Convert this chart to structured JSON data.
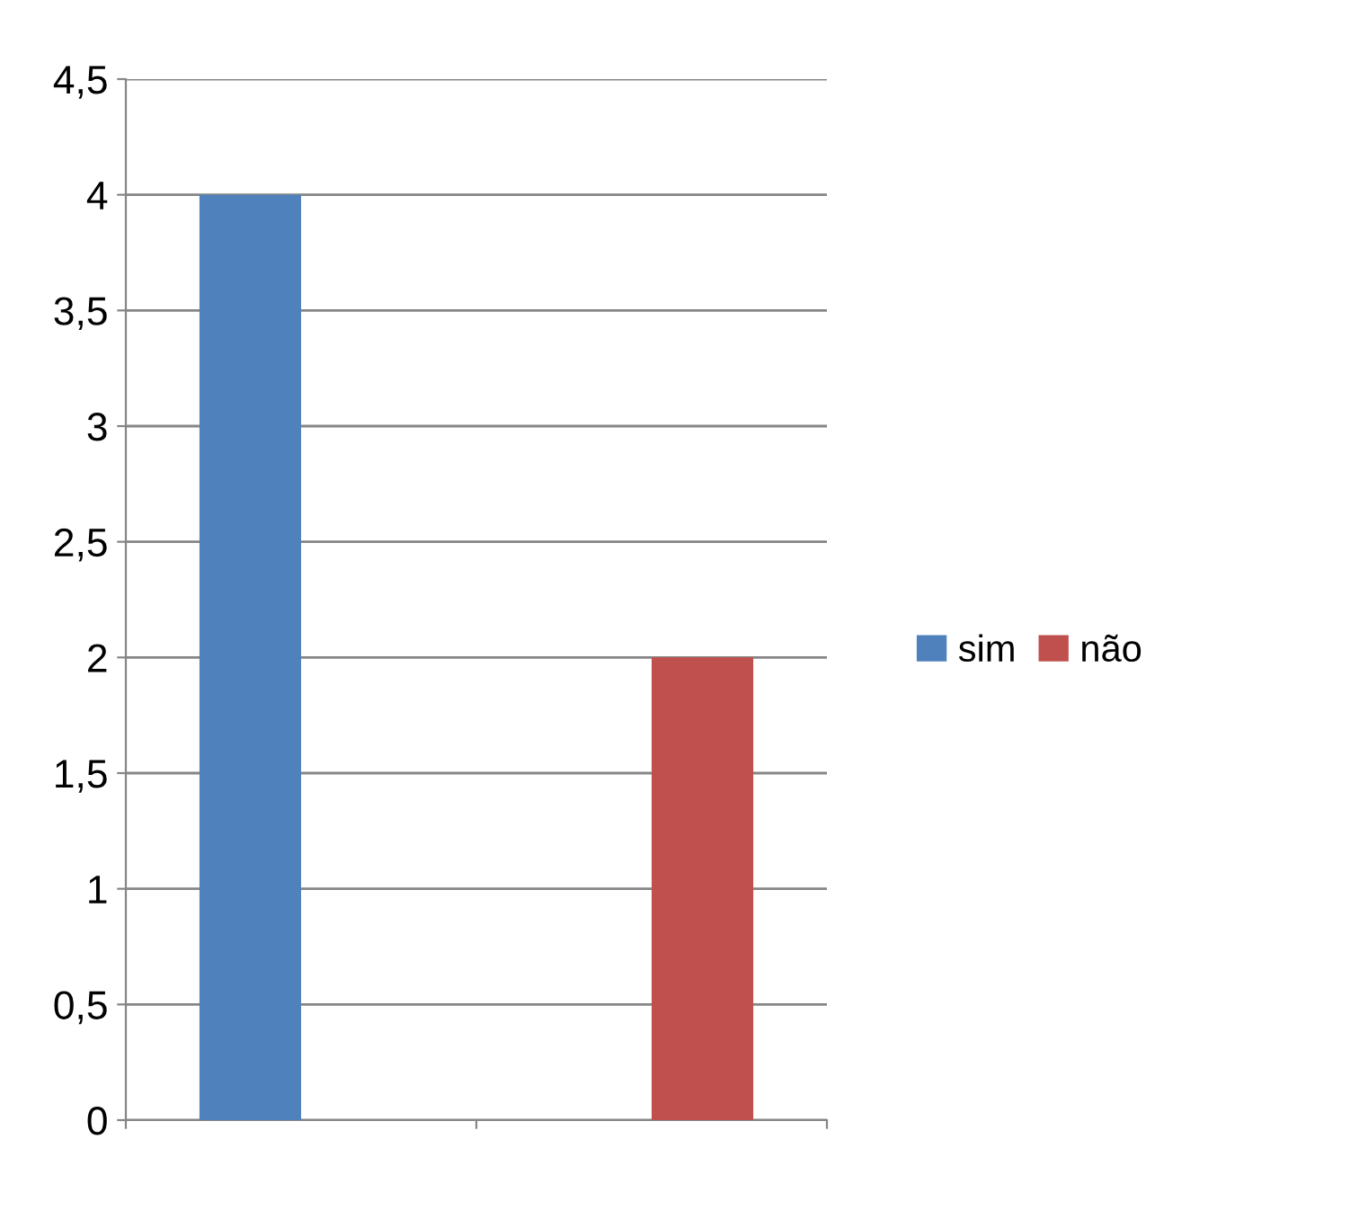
{
  "chart_data": {
    "type": "bar",
    "categories": [
      null,
      null
    ],
    "series": [
      {
        "name": "sim",
        "color": "#4f81bd",
        "values": [
          4,
          null
        ]
      },
      {
        "name": "não",
        "color": "#c0504d",
        "values": [
          null,
          2
        ]
      }
    ],
    "ylim": [
      0,
      4.5
    ],
    "yticks": [
      0,
      {
        "value": 0.5,
        "label": "0,5"
      },
      1,
      {
        "value": 1.5,
        "label": "1,5"
      },
      2,
      {
        "value": 2.5,
        "label": "2,5"
      },
      3,
      {
        "value": 3.5,
        "label": "3,5"
      },
      4,
      {
        "value": 4.5,
        "label": "4,5"
      }
    ],
    "grid": "y",
    "legend": "right"
  }
}
